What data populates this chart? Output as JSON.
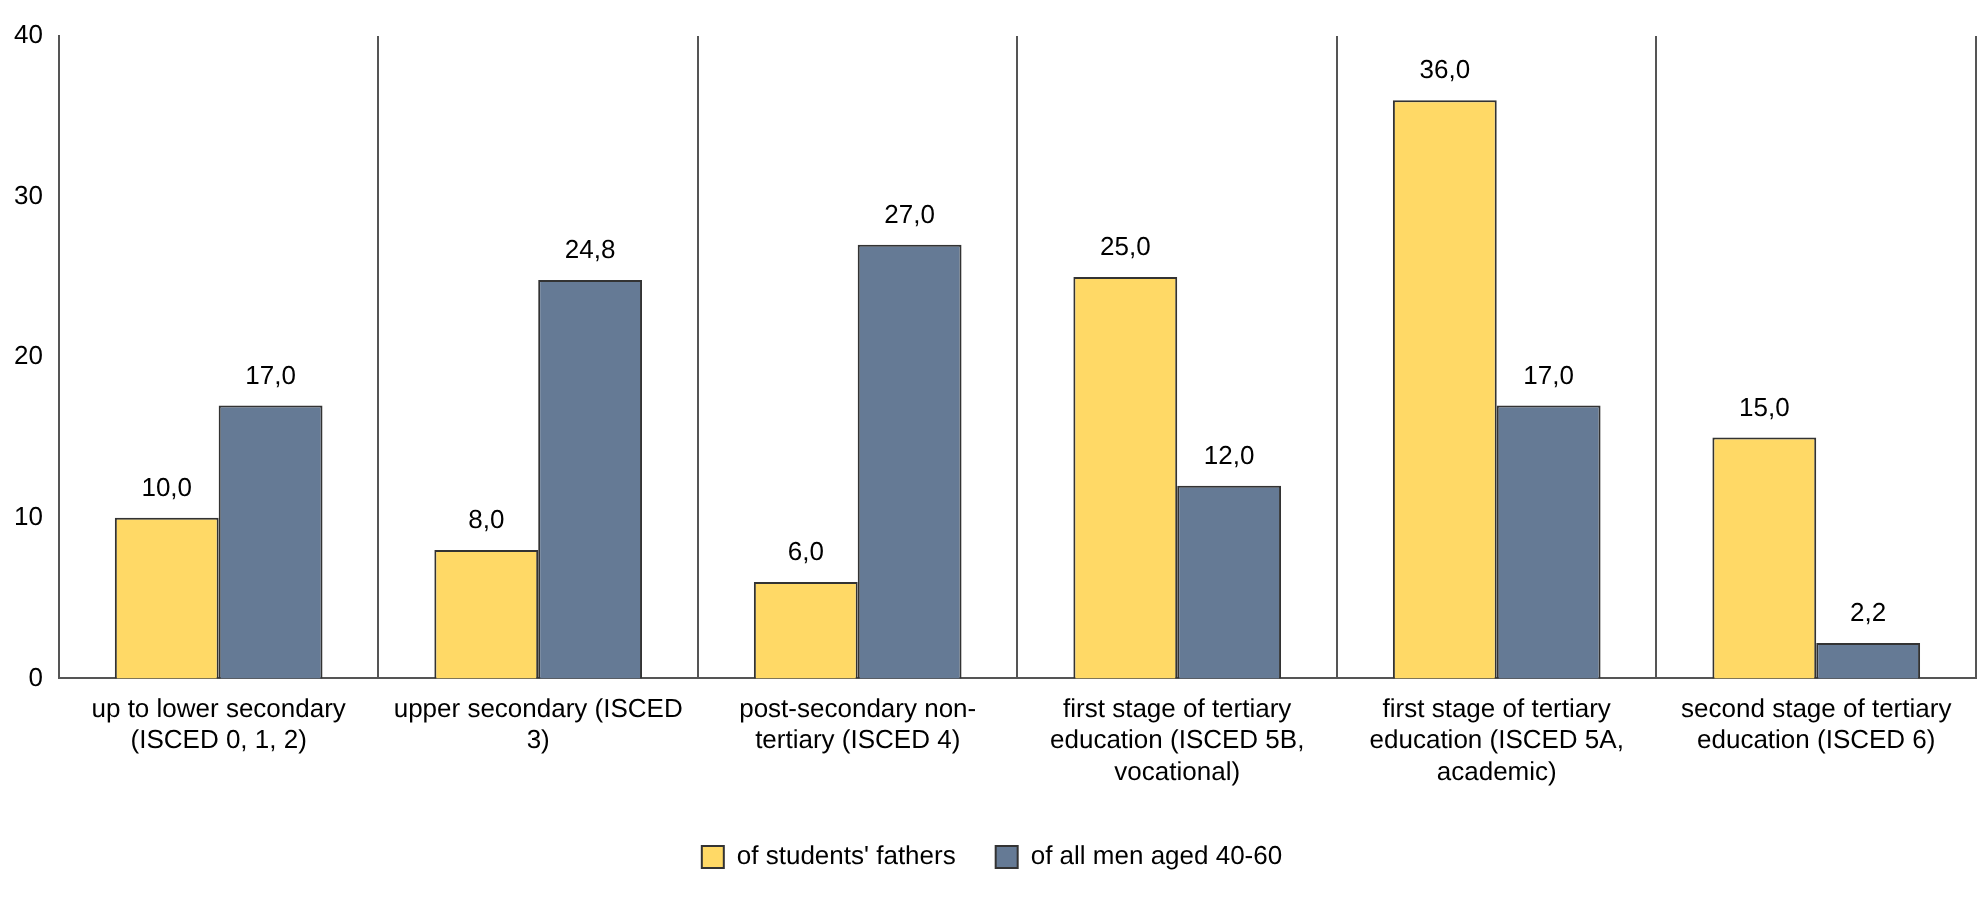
{
  "chart_data": {
    "type": "bar",
    "categories": [
      "up to lower secondary (ISCED 0, 1, 2)",
      "upper secondary (ISCED 3)",
      "post-secondary non-tertiary (ISCED 4)",
      "first stage of tertiary education (ISCED 5B, vocational)",
      "first stage of tertiary education (ISCED 5A, academic)",
      "second stage of tertiary education (ISCED 6)"
    ],
    "series": [
      {
        "name": "of students' fathers",
        "color": "#ffd966",
        "values": [
          10.0,
          8.0,
          6.0,
          25.0,
          36.0,
          15.0
        ],
        "value_labels": [
          "10,0",
          "8,0",
          "6,0",
          "25,0",
          "36,0",
          "15,0"
        ]
      },
      {
        "name": "of all men aged 40-60",
        "color": "#657a95",
        "values": [
          17.0,
          24.8,
          27.0,
          12.0,
          17.0,
          2.2
        ],
        "value_labels": [
          "17,0",
          "24,8",
          "27,0",
          "12,0",
          "17,0",
          "2,2"
        ]
      }
    ],
    "ylim": [
      0,
      40
    ],
    "yticks": [
      0,
      10,
      20,
      30,
      40
    ],
    "grid": "x",
    "legend": "bottom"
  }
}
